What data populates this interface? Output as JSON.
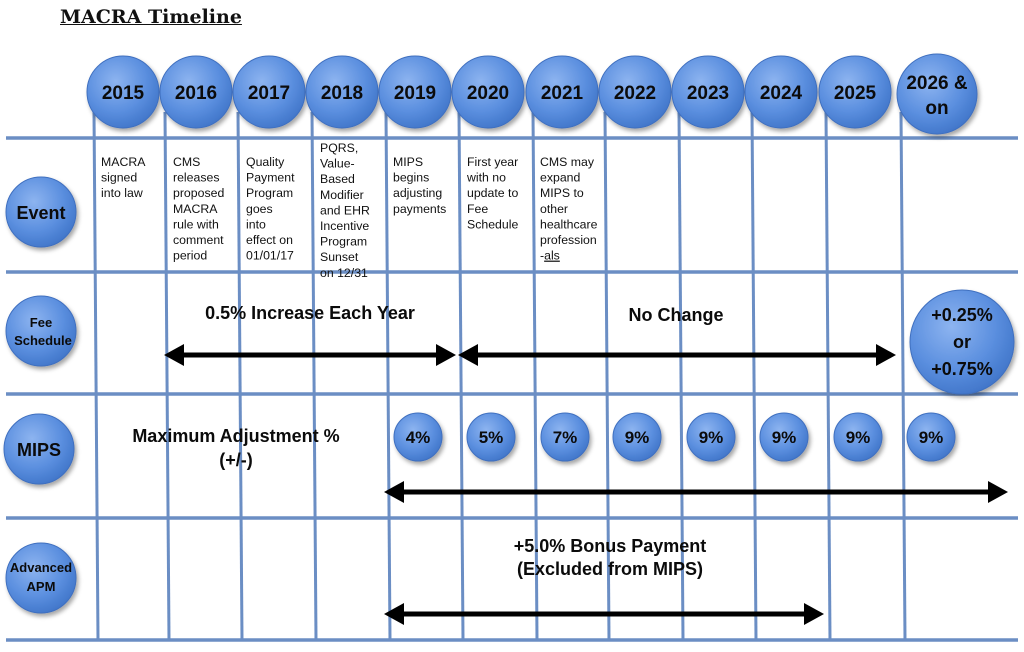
{
  "title": "MACRA Timeline",
  "years": [
    "2015",
    "2016",
    "2017",
    "2018",
    "2019",
    "2020",
    "2021",
    "2022",
    "2023",
    "2024",
    "2025",
    "2026 & on"
  ],
  "rows": {
    "event": "Event",
    "fee": [
      "Fee",
      "Schedule"
    ],
    "mips": "MIPS",
    "apm": [
      "Advanced",
      "APM"
    ]
  },
  "events": [
    [
      "MACRA",
      "signed",
      "into law"
    ],
    [
      "CMS",
      "releases",
      "proposed",
      "MACRA",
      "rule with",
      "comment",
      "period"
    ],
    [
      "Quality",
      "Payment",
      "Program",
      "goes",
      "into",
      "effect on",
      "01/01/17"
    ],
    [
      "PQRS,",
      "Value-",
      "Based",
      "Modifier",
      "and EHR",
      "Incentive",
      "Program",
      "Sunset",
      "on 12/31"
    ],
    [
      "MIPS",
      "begins",
      "adjusting",
      "payments"
    ],
    [
      "First year",
      "with no",
      "update to",
      "Fee",
      "Schedule"
    ],
    [
      "CMS may",
      "expand",
      "MIPS to",
      "other",
      "healthcare",
      "profession",
      "-als"
    ]
  ],
  "fee_schedule": {
    "increase_label": "0.5% Increase Each Year",
    "no_change_label": "No Change",
    "final": [
      "+0.25%",
      "or",
      "+0.75%"
    ]
  },
  "mips": {
    "label": [
      "Maximum Adjustment %",
      "(+/-)"
    ],
    "adjustments": [
      "4%",
      "5%",
      "7%",
      "9%",
      "9%",
      "9%",
      "9%",
      "9%"
    ]
  },
  "apm": {
    "label": [
      "+5.0% Bonus Payment",
      "(Excluded from MIPS)"
    ]
  },
  "colors": {
    "circle_fill": "#5b8fdf",
    "circle_stroke": "#3f6fbf",
    "grid": "#6b8ec4",
    "arrow": "#000000"
  }
}
